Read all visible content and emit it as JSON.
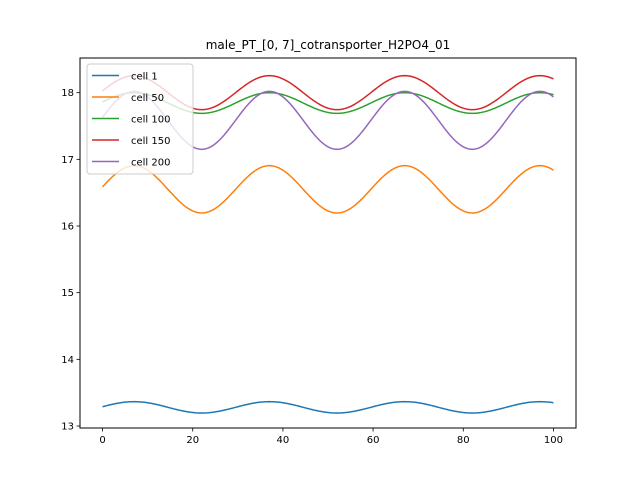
{
  "chart_data": {
    "type": "line",
    "title": "male_PT_[0, 7]_cotransporter_H2PO4_01",
    "xlabel": "",
    "ylabel": "",
    "xlim": [
      -5,
      105
    ],
    "ylim": [
      12.97,
      18.52
    ],
    "xticks": [
      0,
      20,
      40,
      60,
      80,
      100
    ],
    "yticks": [
      13,
      14,
      15,
      16,
      17,
      18
    ],
    "grid": false,
    "legend_position": "top-left",
    "series": [
      {
        "name": "cell 1",
        "color": "#1f77b4",
        "mean": 13.28,
        "amplitude": 0.085,
        "period": 30,
        "peak_x": 7
      },
      {
        "name": "cell 50",
        "color": "#ff7f0e",
        "mean": 16.55,
        "amplitude": 0.355,
        "period": 30,
        "peak_x": 7
      },
      {
        "name": "cell 100",
        "color": "#2ca02c",
        "mean": 17.845,
        "amplitude": 0.155,
        "period": 30,
        "peak_x": 7
      },
      {
        "name": "cell 150",
        "color": "#d62728",
        "mean": 18.0,
        "amplitude": 0.255,
        "period": 30,
        "peak_x": 7
      },
      {
        "name": "cell 200",
        "color": "#9467bd",
        "mean": 17.585,
        "amplitude": 0.435,
        "period": 30,
        "peak_x": 7
      }
    ],
    "x_start": 0,
    "x_end": 100
  }
}
